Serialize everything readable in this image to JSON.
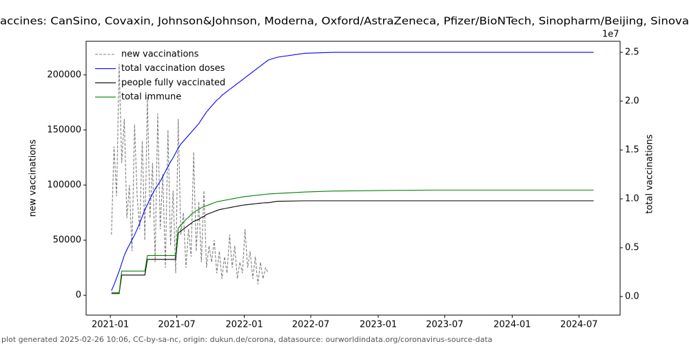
{
  "chart_data": {
    "type": "line",
    "title": "accines: CanSino, Covaxin, Johnson&Johnson, Moderna, Oxford/AstraZeneca, Pfizer/BioNTech, Sinopharm/Beijing, Sinova",
    "ylabel": "new vaccinations",
    "y2label": "total vaccinations",
    "y2_offset_label": "1e7",
    "footer": "plot generated 2025-02-26 10:06, CC-by-sa-nc, origin: dukun.de/corona, datasource: ourworldindata.org/coronavirus-source-data",
    "legend": "upper left",
    "xlim": [
      "2020-10-27",
      "2024-10-21"
    ],
    "xticks": [
      "2021-01",
      "2021-07",
      "2022-01",
      "2022-07",
      "2023-01",
      "2023-07",
      "2024-01",
      "2024-07"
    ],
    "ylim": [
      -18000,
      230500
    ],
    "yticks": [
      0,
      50000,
      100000,
      150000,
      200000
    ],
    "y2lim": [
      -1900000,
      26130000
    ],
    "y2ticks": [
      {
        "value": 0,
        "label": "0.0"
      },
      {
        "value": 5000000,
        "label": "0.5"
      },
      {
        "value": 10000000,
        "label": "1.0"
      },
      {
        "value": 15000000,
        "label": "1.5"
      },
      {
        "value": 20000000,
        "label": "2.0"
      },
      {
        "value": 25000000,
        "label": "2.5"
      }
    ],
    "x": [
      "2021-01-04",
      "2021-01-11",
      "2021-01-18",
      "2021-01-25",
      "2021-02-01",
      "2021-02-08",
      "2021-02-15",
      "2021-02-22",
      "2021-03-01",
      "2021-03-08",
      "2021-03-15",
      "2021-03-22",
      "2021-03-29",
      "2021-04-05",
      "2021-04-12",
      "2021-04-19",
      "2021-04-26",
      "2021-05-03",
      "2021-05-10",
      "2021-05-17",
      "2021-05-24",
      "2021-05-31",
      "2021-06-07",
      "2021-06-14",
      "2021-06-21",
      "2021-06-28",
      "2021-07-05",
      "2021-07-12",
      "2021-07-19",
      "2021-07-26",
      "2021-08-02",
      "2021-08-09",
      "2021-08-16",
      "2021-08-23",
      "2021-08-30",
      "2021-09-06",
      "2021-09-13",
      "2021-09-20",
      "2021-09-27",
      "2021-10-04",
      "2021-10-11",
      "2021-10-18",
      "2021-10-25",
      "2021-11-01",
      "2021-11-08",
      "2021-11-15",
      "2021-11-22",
      "2021-11-29",
      "2021-12-06",
      "2021-12-13",
      "2021-12-20",
      "2021-12-27",
      "2022-01-03",
      "2022-01-10",
      "2022-01-17",
      "2022-01-24",
      "2022-01-31",
      "2022-02-07",
      "2022-02-14",
      "2022-02-21",
      "2022-02-28",
      "2022-03-07",
      "2022-04-01",
      "2022-06-15",
      "2022-09-01",
      "2023-01-01",
      "2023-06-01",
      "2024-01-01",
      "2024-08-10"
    ],
    "series": [
      {
        "name": "new vaccinations",
        "color": "#808080",
        "dash": true,
        "axis": "y",
        "values": [
          55000,
          135000,
          90000,
          210000,
          120000,
          160000,
          70000,
          100000,
          40000,
          155000,
          90000,
          60000,
          140000,
          50000,
          180000,
          70000,
          120000,
          30000,
          165000,
          60000,
          110000,
          25000,
          150000,
          45000,
          95000,
          20000,
          160000,
          55000,
          75000,
          25000,
          60000,
          35000,
          130000,
          40000,
          85000,
          30000,
          95000,
          25000,
          45000,
          30000,
          50000,
          20000,
          40000,
          15000,
          35000,
          20000,
          55000,
          25000,
          45000,
          15000,
          30000,
          20000,
          60000,
          25000,
          40000,
          15000,
          35000,
          10000,
          30000,
          15000,
          25000,
          20000,
          null,
          null,
          null,
          null,
          null,
          null,
          null
        ]
      },
      {
        "name": "total vaccination doses",
        "color": "#0000ff",
        "axis": "y2",
        "values": [
          600000,
          1200000,
          1900000,
          2600000,
          3400000,
          4200000,
          4800000,
          5300000,
          5800000,
          6300000,
          6900000,
          7500000,
          8200000,
          8900000,
          9400000,
          10000000,
          10500000,
          11000000,
          11400000,
          11800000,
          12300000,
          12800000,
          13300000,
          13800000,
          14200000,
          14700000,
          15200000,
          15600000,
          15900000,
          16200000,
          16500000,
          16800000,
          17100000,
          17400000,
          17700000,
          18100000,
          18500000,
          18900000,
          19200000,
          19500000,
          19800000,
          20100000,
          20300000,
          20600000,
          20800000,
          21000000,
          21200000,
          21400000,
          21600000,
          21800000,
          22000000,
          22200000,
          22400000,
          22600000,
          22800000,
          23000000,
          23200000,
          23400000,
          23600000,
          23800000,
          24000000,
          24200000,
          24500000,
          24900000,
          25000000,
          25000000,
          25000000,
          25000000,
          25000000
        ]
      },
      {
        "name": "people fully vaccinated",
        "color": "#000000",
        "axis": "y2",
        "values": [
          300000,
          300000,
          300000,
          300000,
          2200000,
          2200000,
          2200000,
          2200000,
          2200000,
          2200000,
          2200000,
          2200000,
          2200000,
          2200000,
          3800000,
          3800000,
          3800000,
          3800000,
          3800000,
          3800000,
          3800000,
          3800000,
          3800000,
          3800000,
          3800000,
          3800000,
          6500000,
          6700000,
          6900000,
          7100000,
          7300000,
          7500000,
          7700000,
          7800000,
          7900000,
          8100000,
          8200000,
          8400000,
          8500000,
          8600000,
          8700000,
          8800000,
          8900000,
          8950000,
          9000000,
          9050000,
          9100000,
          9150000,
          9200000,
          9250000,
          9300000,
          9350000,
          9380000,
          9410000,
          9440000,
          9470000,
          9500000,
          9530000,
          9560000,
          9580000,
          9600000,
          9600000,
          9750000,
          9800000,
          9800000,
          9800000,
          9800000,
          9800000,
          9800000
        ]
      },
      {
        "name": "total immune",
        "color": "#008000",
        "axis": "y2",
        "values": [
          400000,
          400000,
          400000,
          400000,
          2600000,
          2600000,
          2600000,
          2600000,
          2600000,
          2600000,
          2600000,
          2600000,
          2600000,
          2600000,
          4200000,
          4200000,
          4200000,
          4200000,
          4200000,
          4200000,
          4200000,
          4200000,
          4200000,
          4200000,
          4200000,
          4200000,
          7000000,
          7300000,
          7600000,
          7900000,
          8100000,
          8400000,
          8600000,
          8800000,
          8900000,
          9100000,
          9200000,
          9300000,
          9400000,
          9500000,
          9600000,
          9700000,
          9750000,
          9800000,
          9850000,
          9900000,
          9950000,
          10000000,
          10050000,
          10100000,
          10150000,
          10200000,
          10230000,
          10260000,
          10290000,
          10320000,
          10350000,
          10380000,
          10410000,
          10440000,
          10470000,
          10500000,
          10550000,
          10700000,
          10800000,
          10850000,
          10900000,
          10900000,
          10900000
        ]
      }
    ]
  }
}
